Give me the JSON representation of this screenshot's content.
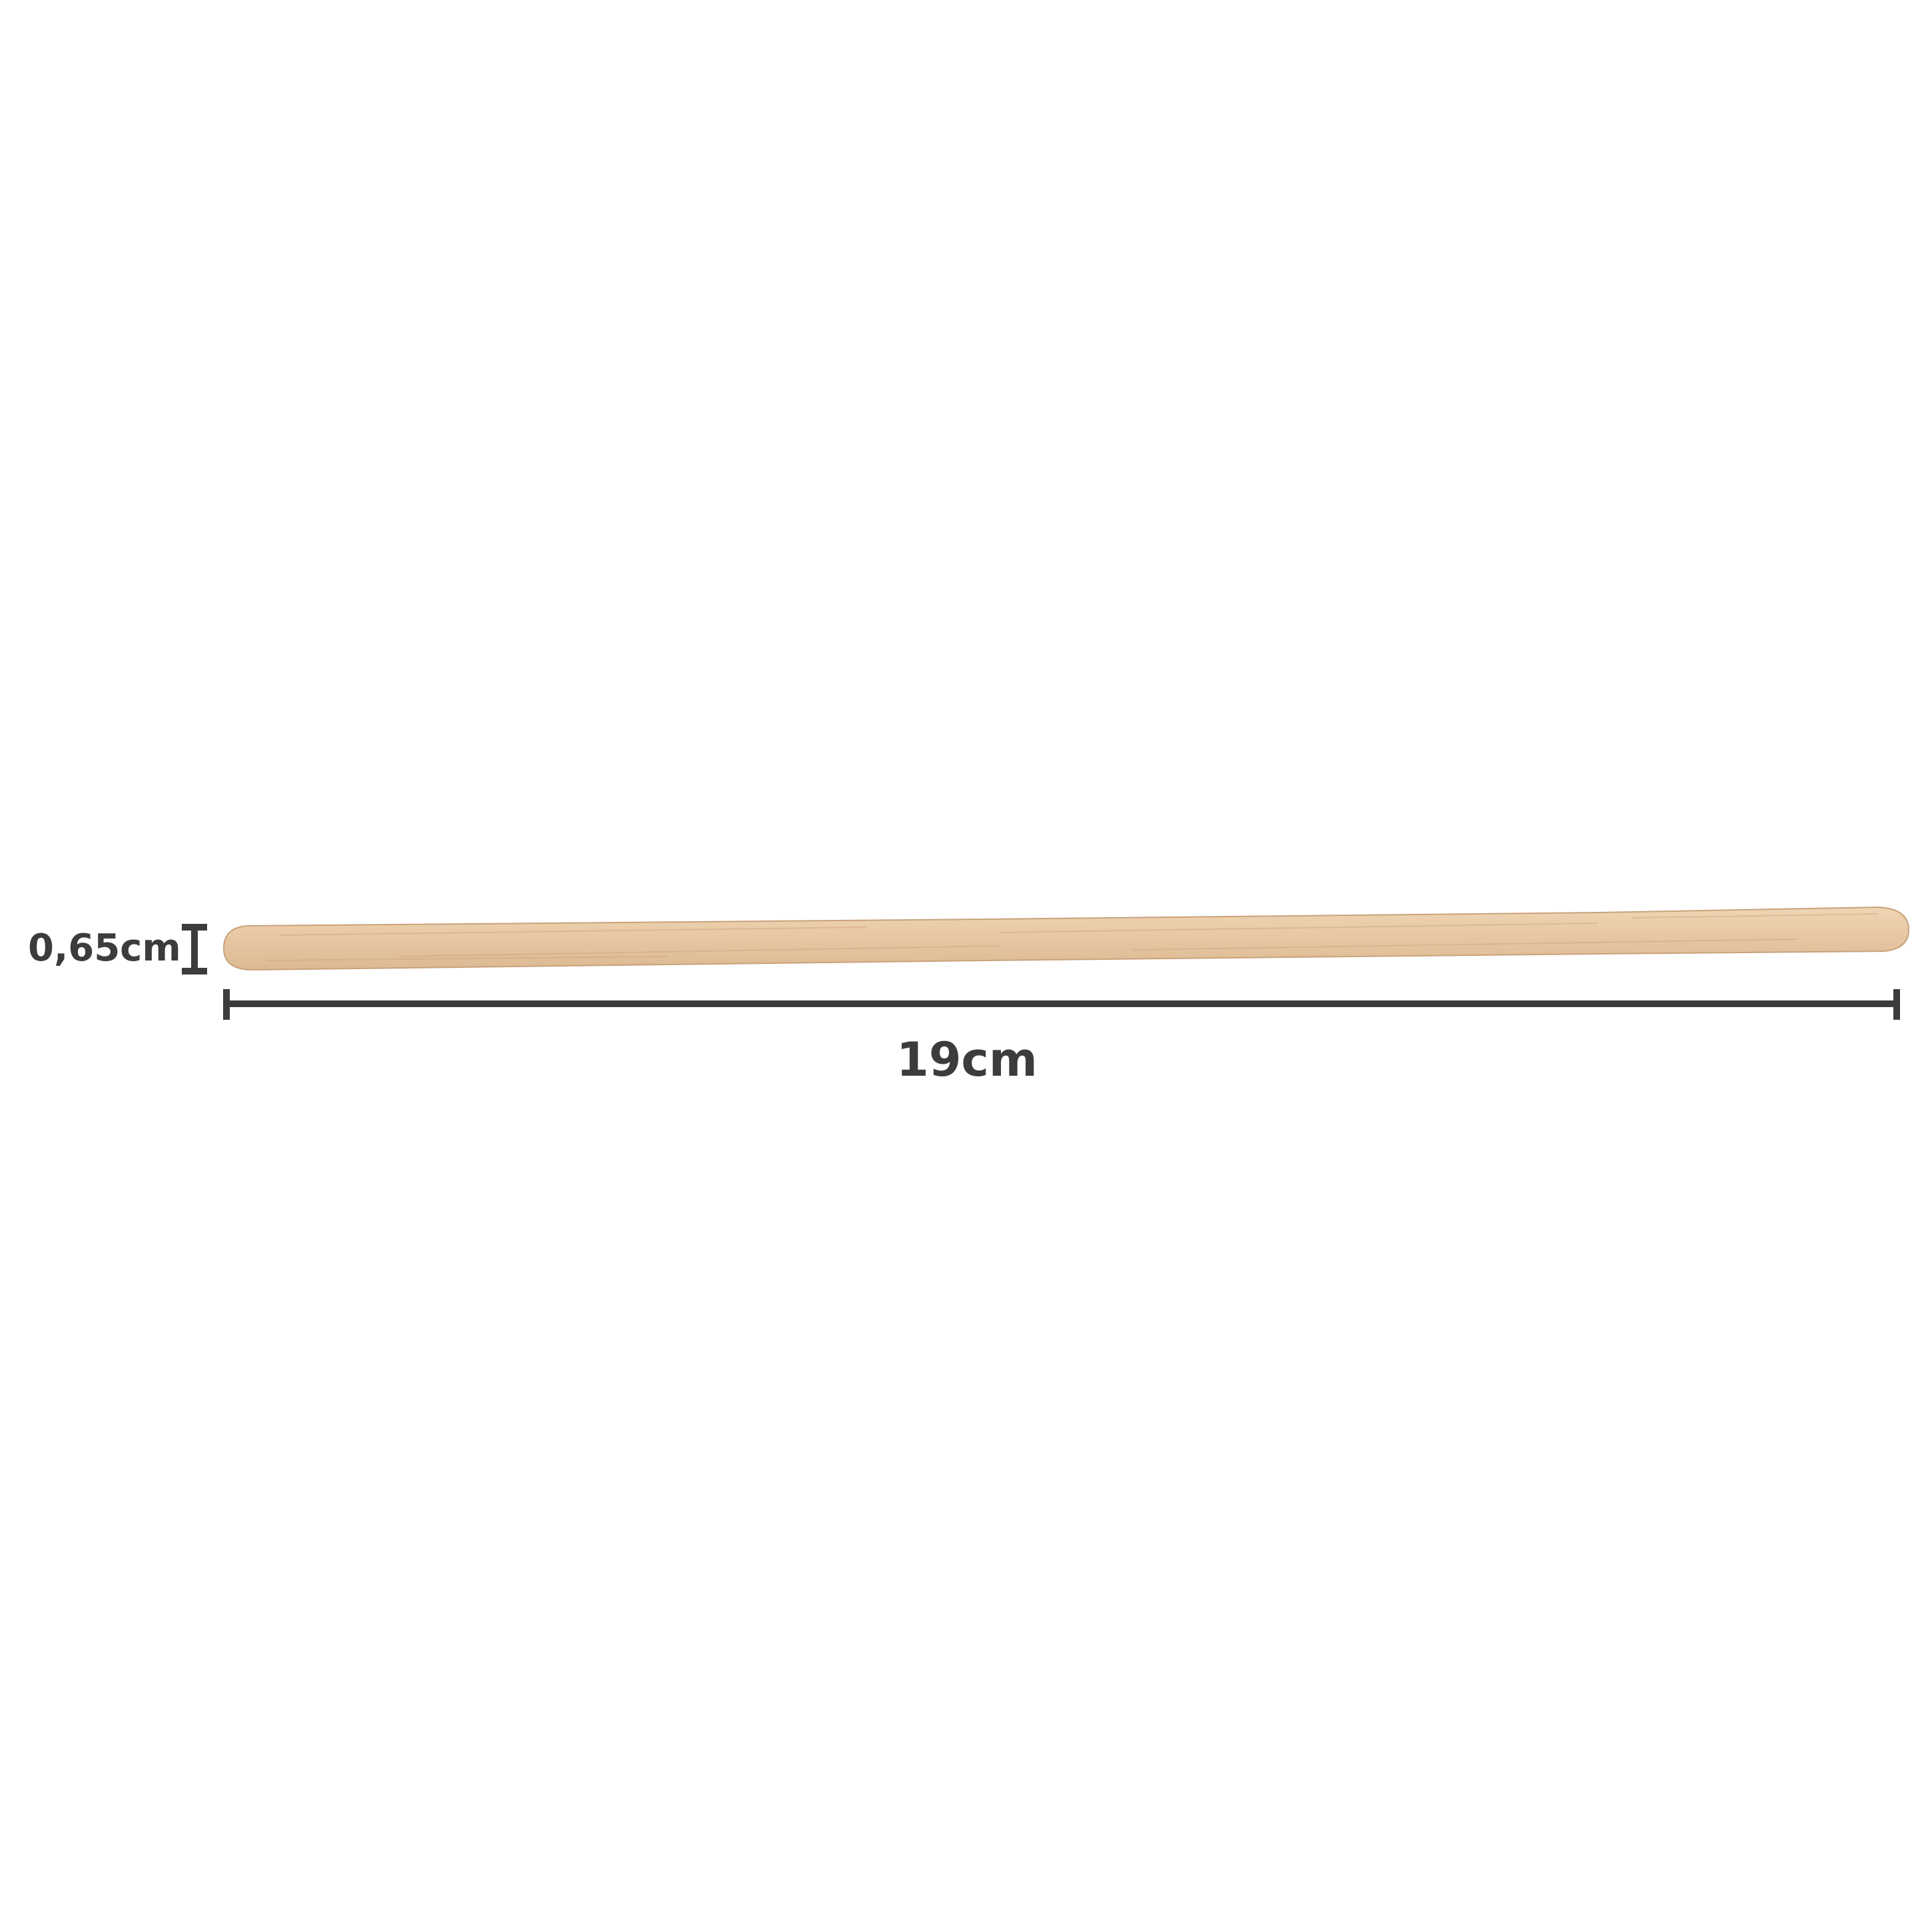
{
  "product": {
    "name": "wooden-stirrer-stick",
    "material_color": "#e8c9a4",
    "grain_color": "#c9a27c",
    "edge_color": "#b8916c"
  },
  "dimensions": {
    "height_label": "0,65cm",
    "length_label": "19cm",
    "line_color": "#3c3c3c"
  }
}
